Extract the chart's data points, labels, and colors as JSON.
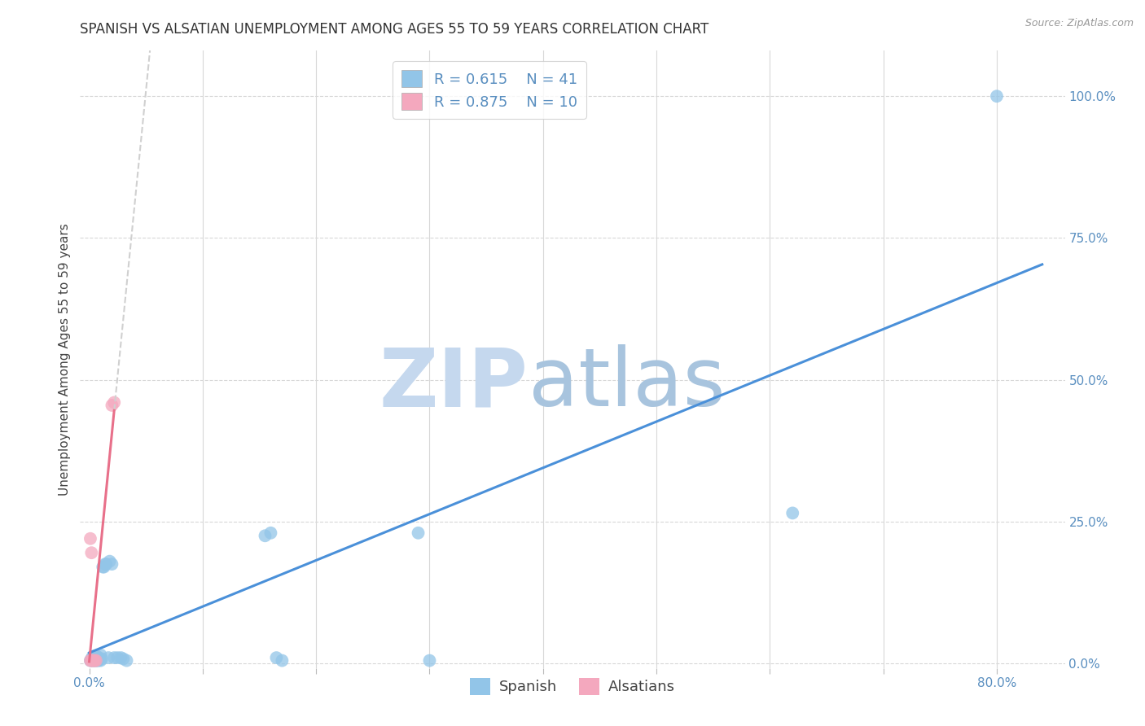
{
  "title": "SPANISH VS ALSATIAN UNEMPLOYMENT AMONG AGES 55 TO 59 YEARS CORRELATION CHART",
  "source": "Source: ZipAtlas.com",
  "ylabel": "Unemployment Among Ages 55 to 59 years",
  "xlim": [
    -0.008,
    0.86
  ],
  "ylim": [
    -0.008,
    1.08
  ],
  "spanish_x": [
    0.001,
    0.002,
    0.002,
    0.003,
    0.003,
    0.003,
    0.004,
    0.004,
    0.005,
    0.005,
    0.005,
    0.006,
    0.006,
    0.007,
    0.007,
    0.008,
    0.008,
    0.009,
    0.01,
    0.01,
    0.011,
    0.012,
    0.013,
    0.014,
    0.015,
    0.017,
    0.018,
    0.02,
    0.022,
    0.025,
    0.028,
    0.03,
    0.033,
    0.155,
    0.16,
    0.165,
    0.17,
    0.29,
    0.3,
    0.62,
    0.8
  ],
  "spanish_y": [
    0.005,
    0.005,
    0.008,
    0.005,
    0.008,
    0.012,
    0.005,
    0.01,
    0.005,
    0.008,
    0.012,
    0.005,
    0.01,
    0.005,
    0.012,
    0.005,
    0.01,
    0.008,
    0.005,
    0.015,
    0.008,
    0.17,
    0.17,
    0.175,
    0.175,
    0.01,
    0.18,
    0.175,
    0.01,
    0.01,
    0.01,
    0.008,
    0.005,
    0.225,
    0.23,
    0.01,
    0.005,
    0.23,
    0.005,
    0.265,
    1.0
  ],
  "alsatian_x": [
    0.001,
    0.001,
    0.002,
    0.002,
    0.003,
    0.004,
    0.005,
    0.006,
    0.02,
    0.022
  ],
  "alsatian_y": [
    0.005,
    0.22,
    0.005,
    0.195,
    0.005,
    0.005,
    0.005,
    0.005,
    0.455,
    0.46
  ],
  "spanish_R": 0.615,
  "spanish_N": 41,
  "alsatian_R": 0.875,
  "alsatian_N": 10,
  "spanish_color": "#92c5e8",
  "alsatian_color": "#f4a8be",
  "spanish_line_color": "#4a90d9",
  "alsatian_line_color": "#e8708a",
  "dashed_line_color": "#d0d0d0",
  "background_color": "#ffffff",
  "grid_color": "#d8d8d8",
  "watermark_zip_color": "#c5d8ee",
  "watermark_atlas_color": "#a8c4de",
  "title_fontsize": 12,
  "axis_label_fontsize": 11,
  "tick_fontsize": 11,
  "legend_fontsize": 13
}
